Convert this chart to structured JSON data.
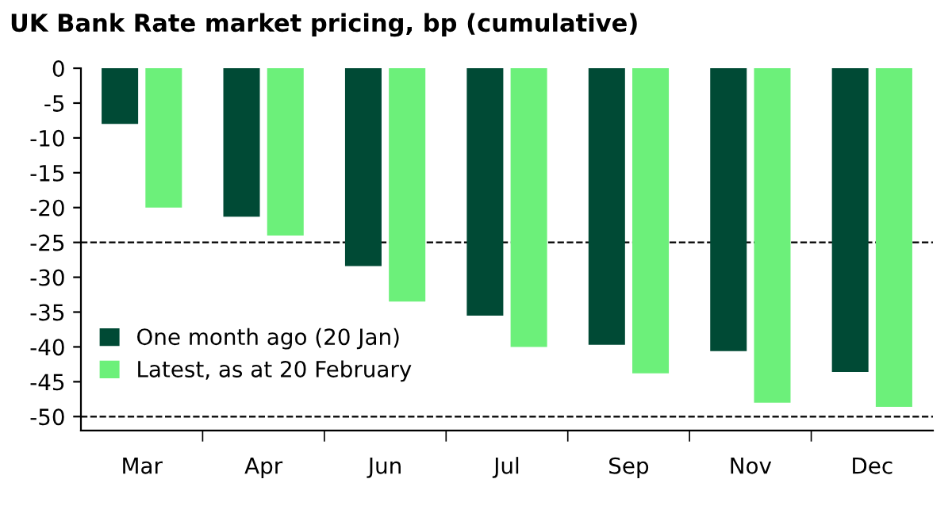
{
  "chart_data": {
    "type": "bar",
    "title": "UK Bank Rate market pricing, bp (cumulative)",
    "categories": [
      "Mar",
      "Apr",
      "Jun",
      "Jul",
      "Sep",
      "Nov",
      "Dec"
    ],
    "series": [
      {
        "name": "One month ago (20 Jan)",
        "color": "#004a35",
        "values": [
          -8,
          -21.3,
          -28.4,
          -35.5,
          -39.7,
          -40.6,
          -43.6
        ]
      },
      {
        "name": "Latest, as at 20 February",
        "color": "#6cf07a",
        "values": [
          -20,
          -24,
          -33.5,
          -40,
          -43.8,
          -48,
          -48.6
        ]
      }
    ],
    "ylim": [
      -52,
      0
    ],
    "yticks": [
      0,
      -5,
      -10,
      -15,
      -20,
      -25,
      -30,
      -35,
      -40,
      -45,
      -50
    ],
    "ref_lines": [
      {
        "axis": "y",
        "value": -25,
        "color": "#000000",
        "line_style": "dashed"
      },
      {
        "axis": "y",
        "value": -50,
        "color": "#000000",
        "line_style": "dashed"
      }
    ],
    "grid": false,
    "legend": "bottom left"
  }
}
